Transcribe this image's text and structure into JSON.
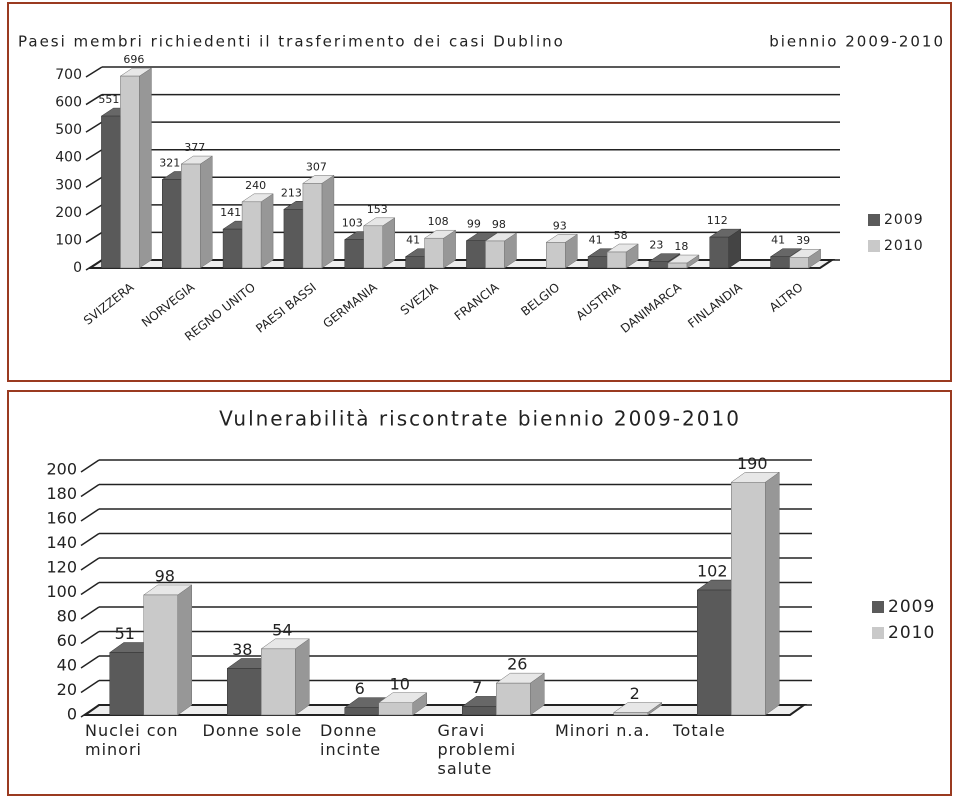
{
  "chart_data": [
    {
      "type": "bar3d",
      "title": "Paesi membri richiedenti il trasferimento dei casi Dublino",
      "subtitle": "biennio 2009-2010",
      "categories": [
        "SVIZZERA",
        "NORVEGIA",
        "REGNO UNITO",
        "PAESI BASSI",
        "GERMANIA",
        "SVEZIA",
        "FRANCIA",
        "BELGIO",
        "AUSTRIA",
        "DANIMARCA",
        "FINLANDIA",
        "ALTRO"
      ],
      "series": [
        {
          "name": "2009",
          "color": "#5a5a5a",
          "values": [
            551,
            321,
            141,
            213,
            103,
            41,
            99,
            null,
            41,
            23,
            112,
            41
          ]
        },
        {
          "name": "2010",
          "color": "#c9c9c9",
          "values": [
            696,
            377,
            240,
            307,
            153,
            108,
            98,
            93,
            58,
            18,
            null,
            39
          ]
        }
      ],
      "ylim": [
        0,
        700
      ],
      "yticks": [
        0,
        100,
        200,
        300,
        400,
        500,
        600,
        700
      ],
      "grid": true,
      "legend": "right"
    },
    {
      "type": "bar3d",
      "title": "Vulnerabilità riscontrate biennio 2009-2010",
      "categories": [
        "Nuclei con minori",
        "Donne sole",
        "Donne incinte",
        "Gravi problemi salute",
        "Minori n.a.",
        "Totale"
      ],
      "series": [
        {
          "name": "2009",
          "color": "#5a5a5a",
          "values": [
            51,
            38,
            6,
            7,
            null,
            102
          ]
        },
        {
          "name": "2010",
          "color": "#c9c9c9",
          "values": [
            98,
            54,
            10,
            26,
            2,
            190
          ]
        }
      ],
      "ylim": [
        0,
        200
      ],
      "yticks": [
        0,
        20,
        40,
        60,
        80,
        100,
        120,
        140,
        160,
        180,
        200
      ],
      "grid": true,
      "legend": "right"
    }
  ]
}
